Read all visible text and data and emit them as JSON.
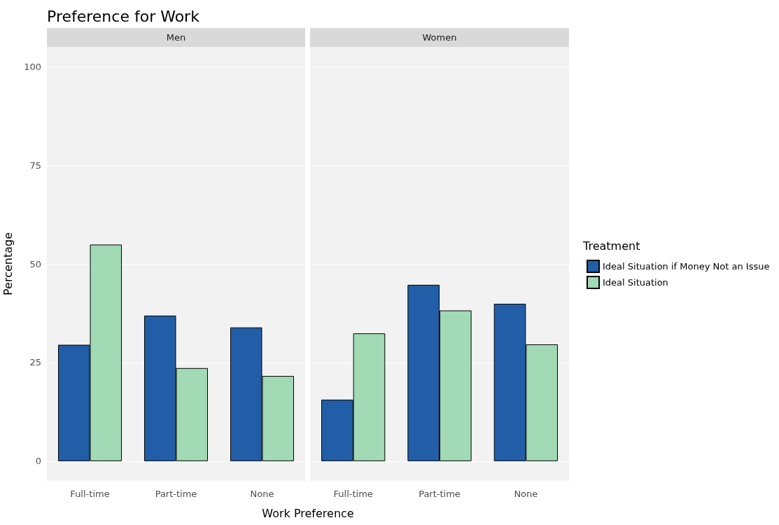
{
  "chart_data": [
    {
      "type": "bar",
      "title": "Preference for Work",
      "subtitle": "Men",
      "xlabel": "Work Preference",
      "ylabel": "Percentage",
      "categories": [
        "Full-time",
        "Part-time",
        "None"
      ],
      "series": [
        {
          "color": "#225ea8",
          "values": [
            29.5,
            36.9,
            33.9
          ]
        },
        {
          "color": "#a1dab4",
          "values": [
            54.9,
            23.6,
            21.6
          ]
        }
      ],
      "ylim": [
        -5,
        105
      ],
      "yticks": [
        0,
        25,
        50,
        75,
        100
      ],
      "grid": "y",
      "legend": false
    },
    {
      "type": "bar",
      "subtitle": "Women",
      "legend_title": "Treatment",
      "categories": [
        "Full-time",
        "Part-time",
        "None"
      ],
      "series": [
        {
          "name": "Ideal Situation if Money Not an Issue",
          "color": "#225ea8",
          "values": [
            15.6,
            44.7,
            39.9
          ]
        },
        {
          "name": "Ideal Situation",
          "color": "#a1dab4",
          "values": [
            32.4,
            38.2,
            29.6
          ]
        }
      ],
      "ylim": [
        -5,
        105
      ],
      "yticks": [
        0,
        25,
        50,
        75,
        100
      ],
      "grid": "y",
      "legend": "right",
      "tick_labels": "x"
    }
  ]
}
